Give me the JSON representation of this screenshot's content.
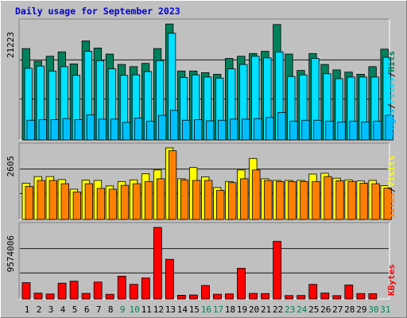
{
  "title": "Daily usage for September 2023",
  "colors": {
    "background": "#c0c0c0",
    "hits": "#00805c",
    "files": "#00e0ff",
    "pages": "#00c0ff",
    "visits": "#ffff00",
    "sites": "#ff8000",
    "kbytes": "#ff0000",
    "weekday_label": "#000000",
    "weekend_label": "#00805c",
    "title": "#0000d0"
  },
  "chart_data": [
    {
      "type": "bar",
      "title": "Daily usage for September 2023",
      "panel": "traffic",
      "categories": [
        "1",
        "2",
        "3",
        "4",
        "5",
        "6",
        "7",
        "8",
        "9",
        "10",
        "11",
        "12",
        "13",
        "14",
        "15",
        "16",
        "17",
        "18",
        "19",
        "20",
        "21",
        "22",
        "23",
        "24",
        "25",
        "26",
        "27",
        "28",
        "29",
        "30",
        "31"
      ],
      "ytick": "21223",
      "ymax": 21223,
      "right_legend": [
        "Pages",
        "/",
        "Files",
        "/",
        "Hits"
      ],
      "series": [
        {
          "name": "Hits",
          "values": [
            16700,
            14400,
            15300,
            16100,
            13900,
            18100,
            16800,
            15700,
            13800,
            13400,
            14000,
            16700,
            21200,
            12600,
            12600,
            12300,
            12000,
            14900,
            15300,
            15800,
            16200,
            21100,
            15700,
            12700,
            15800,
            13800,
            12800,
            12400,
            12000,
            13400,
            16600
          ]
        },
        {
          "name": "Files",
          "values": [
            13100,
            13500,
            12600,
            13400,
            11800,
            16200,
            14500,
            13000,
            11800,
            11900,
            12500,
            14500,
            19500,
            11400,
            11900,
            11500,
            11300,
            13000,
            13800,
            15300,
            15000,
            16100,
            11600,
            11900,
            14900,
            12100,
            11200,
            11500,
            11500,
            11500,
            15100
          ]
        },
        {
          "name": "Pages",
          "values": [
            3600,
            3700,
            3700,
            3900,
            3700,
            4600,
            3800,
            3800,
            3200,
            4000,
            3400,
            4500,
            5400,
            3600,
            3700,
            3500,
            3600,
            3800,
            3800,
            3900,
            4100,
            5000,
            3400,
            3600,
            3600,
            3400,
            3300,
            3400,
            3300,
            3400,
            4500
          ]
        }
      ]
    },
    {
      "type": "bar",
      "panel": "visitors",
      "categories": [
        "1",
        "2",
        "3",
        "4",
        "5",
        "6",
        "7",
        "8",
        "9",
        "10",
        "11",
        "12",
        "13",
        "14",
        "15",
        "16",
        "17",
        "18",
        "19",
        "20",
        "21",
        "22",
        "23",
        "24",
        "25",
        "26",
        "27",
        "28",
        "29",
        "30",
        "31"
      ],
      "ytick": "2605",
      "ymax": 2605,
      "right_legend": [
        "Sites",
        "/",
        "Visits"
      ],
      "series": [
        {
          "name": "Visits",
          "values": [
            1320,
            1560,
            1560,
            1450,
            1100,
            1430,
            1420,
            1220,
            1380,
            1440,
            1660,
            1800,
            2605,
            1480,
            1890,
            1550,
            1160,
            1380,
            1800,
            2220,
            1480,
            1420,
            1420,
            1420,
            1650,
            1680,
            1500,
            1440,
            1400,
            1420,
            1230
          ]
        },
        {
          "name": "Sites",
          "values": [
            1200,
            1420,
            1420,
            1300,
            1000,
            1300,
            1130,
            1100,
            1240,
            1300,
            1380,
            1480,
            2500,
            1440,
            1420,
            1420,
            1060,
            1340,
            1480,
            1800,
            1420,
            1380,
            1380,
            1380,
            1380,
            1560,
            1410,
            1380,
            1320,
            1300,
            1140
          ]
        }
      ]
    },
    {
      "type": "bar",
      "panel": "volume",
      "categories": [
        "1",
        "2",
        "3",
        "4",
        "5",
        "6",
        "7",
        "8",
        "9",
        "10",
        "11",
        "12",
        "13",
        "14",
        "15",
        "16",
        "17",
        "18",
        "19",
        "20",
        "21",
        "22",
        "23",
        "24",
        "25",
        "26",
        "27",
        "28",
        "29",
        "30",
        "31"
      ],
      "ytick": "9574006",
      "ymax": 9574006,
      "right_legend": [
        "KBytes"
      ],
      "series": [
        {
          "name": "KBytes",
          "values": [
            2180000,
            780000,
            660000,
            2110000,
            2380000,
            740000,
            2260000,
            620000,
            3040000,
            1950000,
            2800000,
            9574006,
            5300000,
            490000,
            530000,
            1800000,
            630000,
            670000,
            4100000,
            740000,
            720000,
            7700000,
            450000,
            460000,
            1950000,
            790000,
            440000,
            1870000,
            720000,
            700000,
            0
          ]
        }
      ]
    }
  ],
  "weekend_days": [
    9,
    10,
    16,
    17,
    23,
    24,
    30,
    31
  ]
}
